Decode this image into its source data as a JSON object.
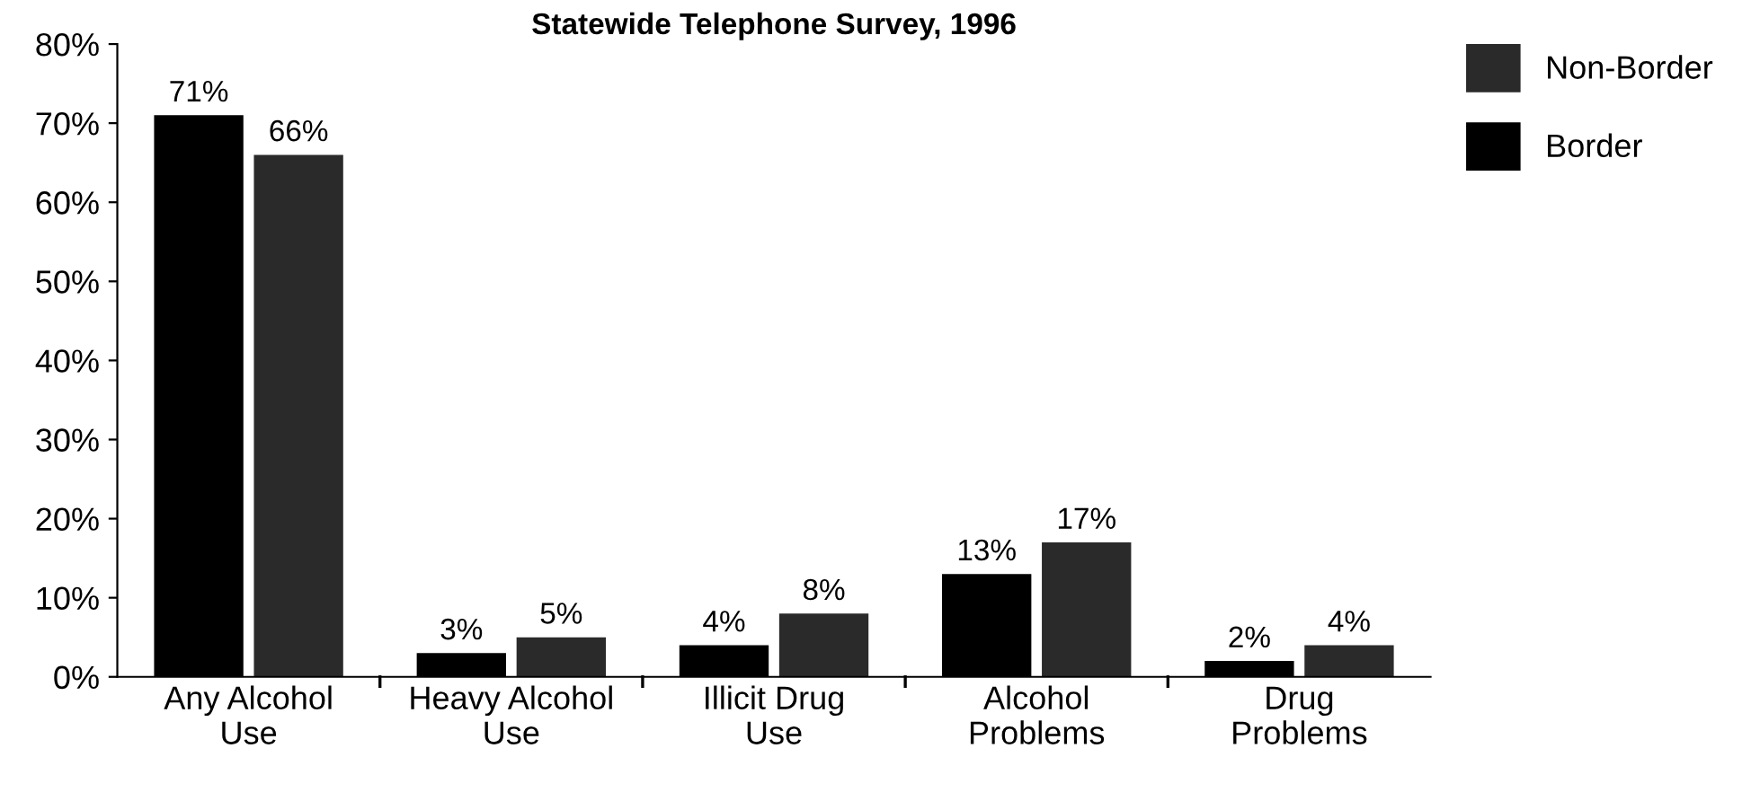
{
  "chart_data": {
    "type": "bar",
    "title": "Statewide Telephone Survey, 1996",
    "categories": [
      "Any Alcohol\nUse",
      "Heavy Alcohol\nUse",
      "Illicit Drug\nUse",
      "Alcohol\nProblems",
      "Drug\nProblems"
    ],
    "series": [
      {
        "name": "Border",
        "color": "#000000",
        "values": [
          71,
          3,
          4,
          13,
          2
        ],
        "value_labels": [
          "71%",
          "3%",
          "4%",
          "13%",
          "2%"
        ]
      },
      {
        "name": "Non-Border",
        "color": "#2a2a2a",
        "values": [
          66,
          5,
          8,
          17,
          4
        ],
        "value_labels": [
          "66%",
          "5%",
          "8%",
          "17%",
          "4%"
        ]
      }
    ],
    "ylim": [
      0,
      80
    ],
    "yticks": [
      {
        "value": 0,
        "label": "0%"
      },
      {
        "value": 10,
        "label": "10%"
      },
      {
        "value": 20,
        "label": "20%"
      },
      {
        "value": 30,
        "label": "30%"
      },
      {
        "value": 40,
        "label": "40%"
      },
      {
        "value": 50,
        "label": "50%"
      },
      {
        "value": 60,
        "label": "60%"
      },
      {
        "value": 70,
        "label": "70%"
      },
      {
        "value": 80,
        "label": "80%"
      }
    ],
    "grid": false,
    "legend": "top right"
  }
}
